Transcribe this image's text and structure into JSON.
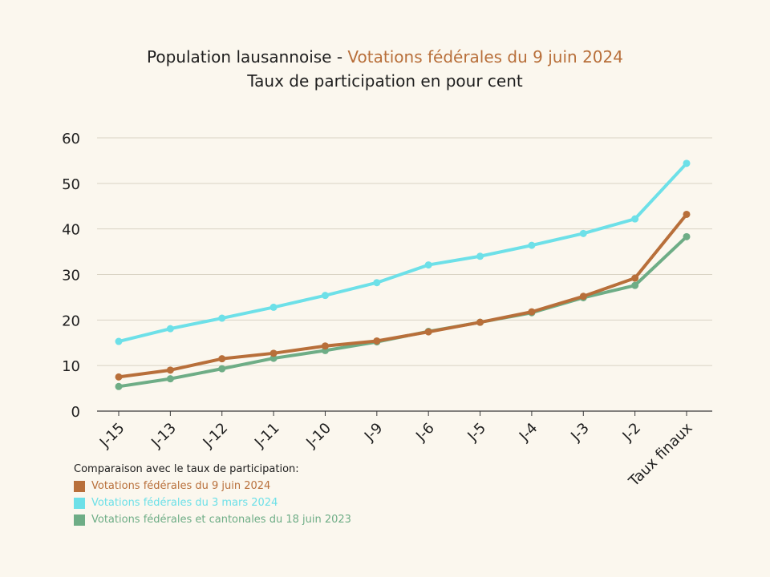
{
  "header": {
    "title_main": "Population lausannoise - ",
    "title_accent": "Votations fédérales du 9 juin 2024",
    "subtitle": "Taux de participation en pour cent"
  },
  "legend": {
    "heading": "Comparaison avec le taux de participation:"
  },
  "chart_data": {
    "type": "line",
    "title": "Population lausannoise - Votations fédérales du 9 juin 2024",
    "subtitle": "Taux de participation en pour cent",
    "xlabel": "",
    "ylabel": "",
    "categories": [
      "J-15",
      "J-13",
      "J-12",
      "J-11",
      "J-10",
      "J-9",
      "J-6",
      "J-5",
      "J-4",
      "J-3",
      "J-2",
      "Taux finaux"
    ],
    "ylim": [
      0,
      60
    ],
    "yticks": [
      0,
      10,
      20,
      30,
      40,
      50,
      60
    ],
    "grid": true,
    "legend_position": "bottom-left",
    "series": [
      {
        "name": "Votations fédérales du 9 juin 2024",
        "color": "#b86f3a",
        "values": [
          7.5,
          9.0,
          11.5,
          12.7,
          14.3,
          15.4,
          17.4,
          19.5,
          21.8,
          25.2,
          29.2,
          43.2
        ]
      },
      {
        "name": "Votations fédérales du 3 mars 2024",
        "color": "#6de0e8",
        "values": [
          15.3,
          18.1,
          20.4,
          22.8,
          25.4,
          28.2,
          32.1,
          34.0,
          36.4,
          39.0,
          42.2,
          54.4
        ]
      },
      {
        "name": "Votations fédérales et cantonales du 18 juin 2023",
        "color": "#6ead86",
        "values": [
          5.4,
          7.1,
          9.3,
          11.6,
          13.3,
          15.2,
          17.5,
          19.5,
          21.6,
          24.9,
          27.6,
          38.3
        ]
      }
    ]
  }
}
